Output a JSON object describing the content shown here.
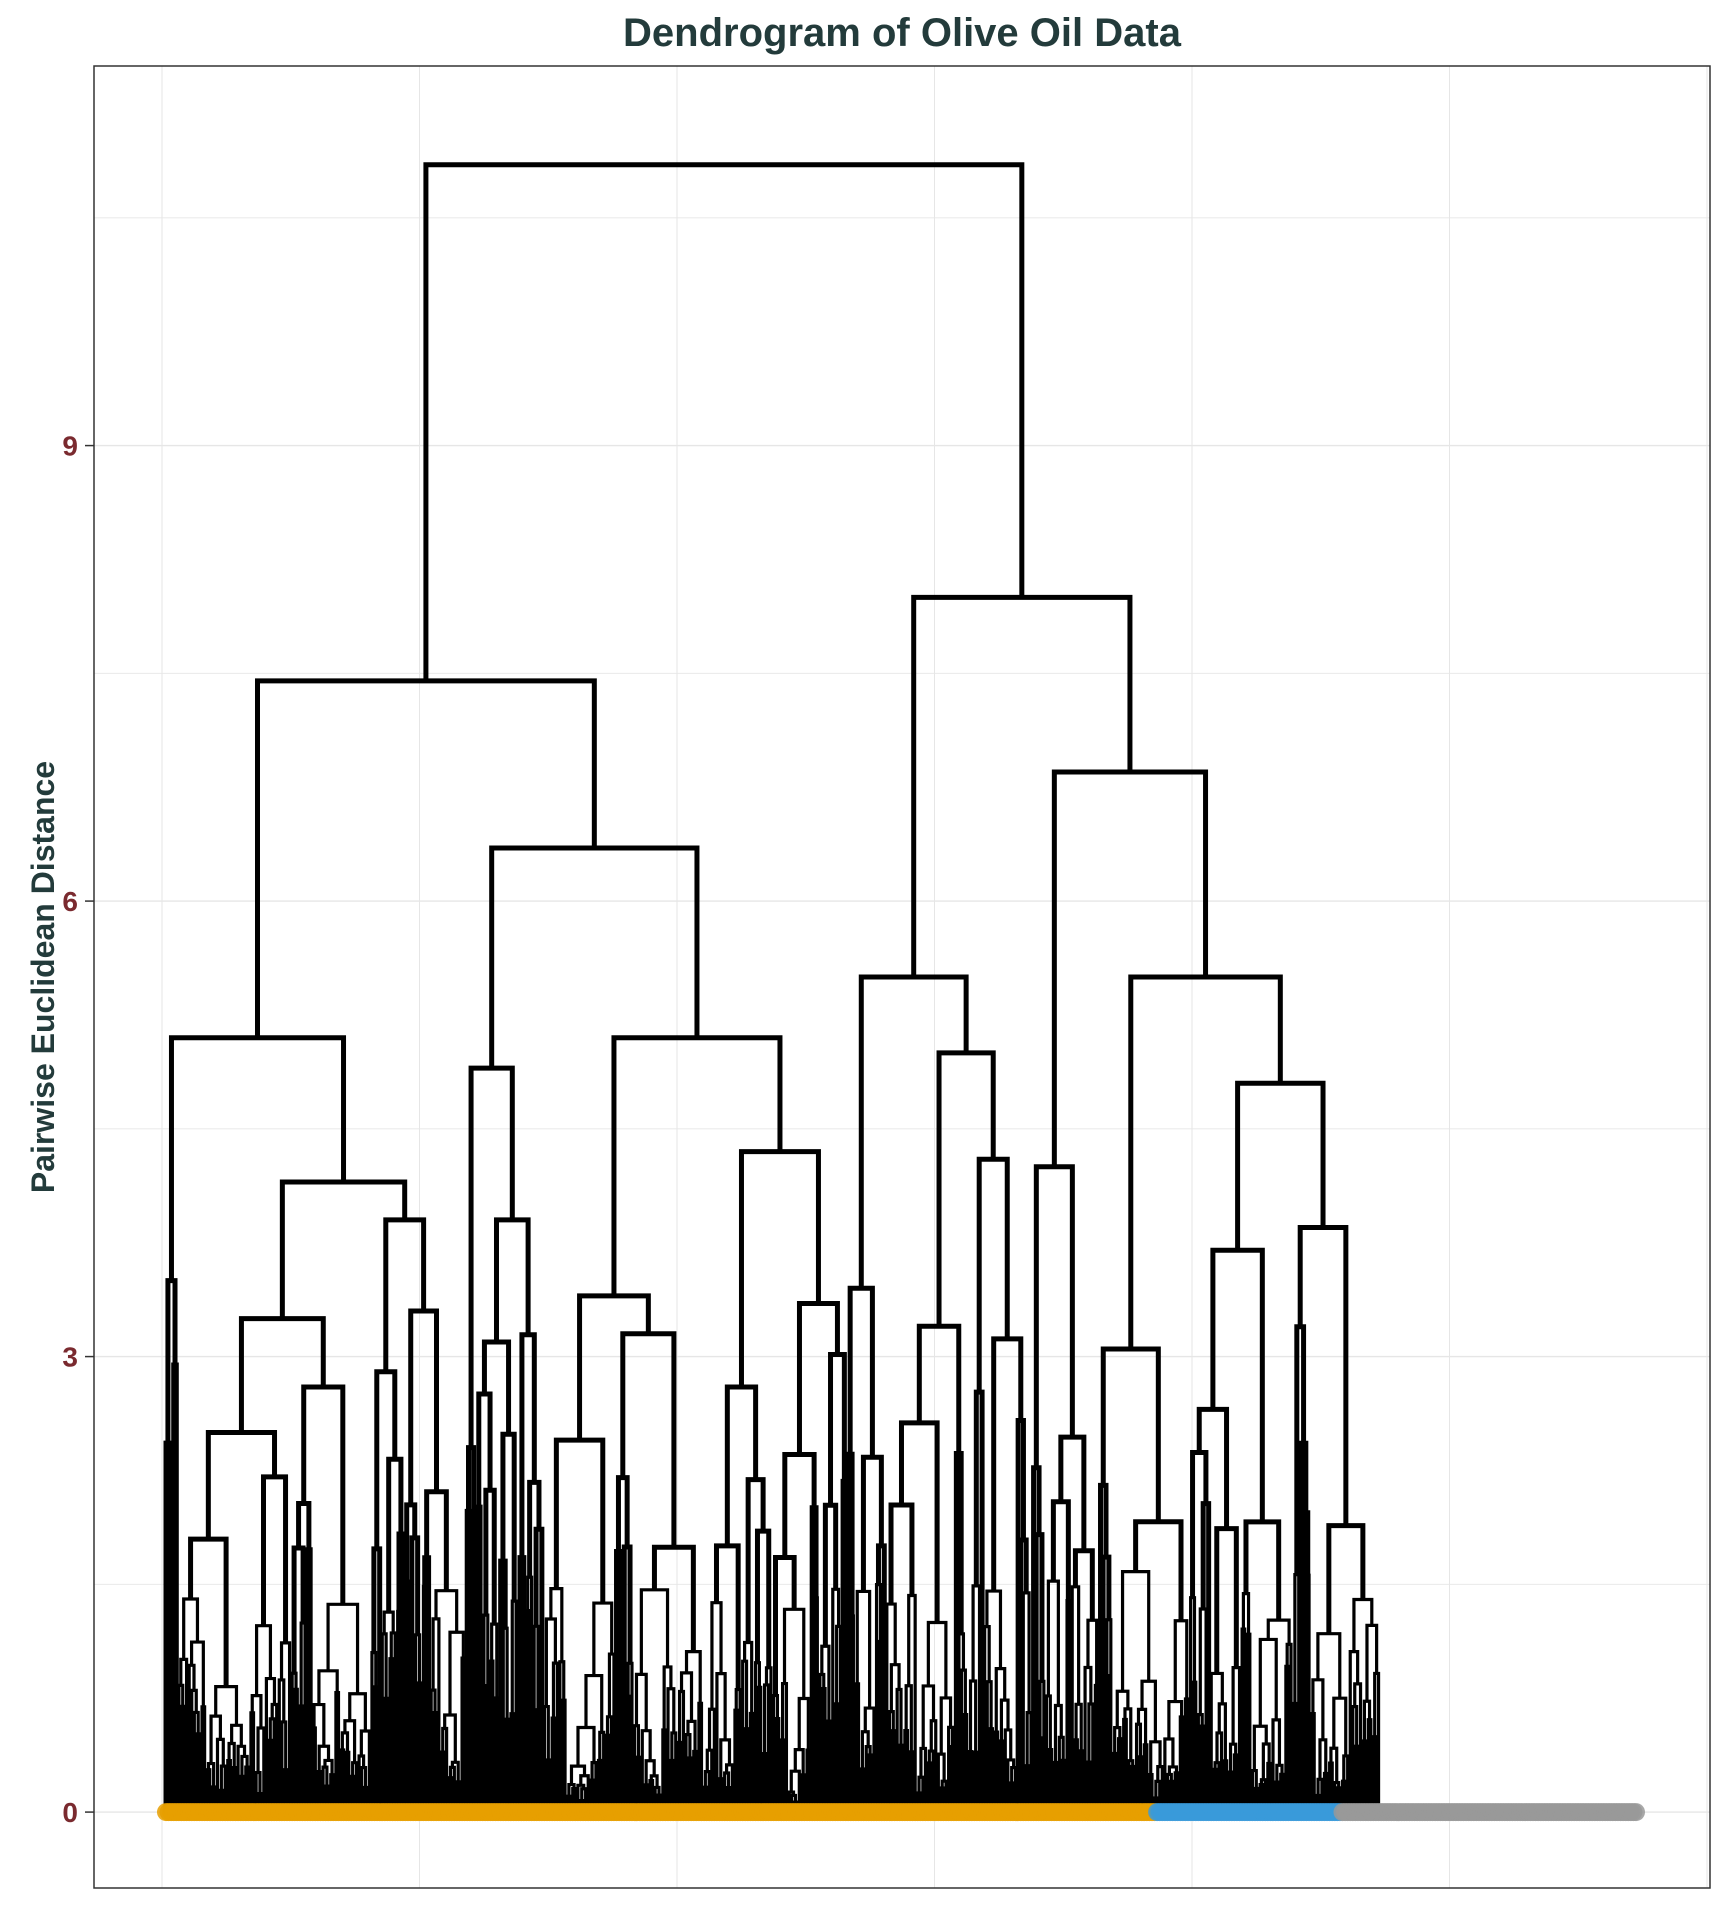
{
  "chart_data": {
    "type": "dendrogram",
    "title": "Dendrogram of Olive Oil Data",
    "xlabel": "",
    "ylabel": "Pairwise Euclidean Distance",
    "ylim": [
      -0.5,
      11.5
    ],
    "yticks": [
      0,
      3,
      6,
      9
    ],
    "grid": true,
    "legend": "none",
    "leaf_count": 572,
    "colors": {
      "line": "#000000",
      "grid": "#e6e6e6",
      "group_a": "#e69f00",
      "group_b": "#3a9ad9",
      "group_c": "#999999"
    },
    "leaf_groups": [
      {
        "color": "group_a",
        "count": 385
      },
      {
        "color": "group_b",
        "count": 72
      },
      {
        "color": "group_c",
        "count": 115
      }
    ],
    "tree": {
      "h": 10.85,
      "children": [
        {
          "h": 7.45,
          "children": [
            {
              "h": 5.1,
              "children": [
                {
                  "h": 3.5,
                  "leaves": 5
                },
                {
                  "h": 4.15,
                  "children": [
                    {
                      "h": 3.25,
                      "children": [
                        {
                          "h": 2.5,
                          "leaves": 44
                        },
                        {
                          "h": 2.8,
                          "leaves": 31
                        }
                      ]
                    },
                    {
                      "h": 3.9,
                      "children": [
                        {
                          "h": 2.9,
                          "leaves": 13
                        },
                        {
                          "h": 3.3,
                          "leaves": 24
                        }
                      ]
                    }
                  ]
                }
              ]
            },
            {
              "h": 6.35,
              "children": [
                {
                  "h": 4.9,
                  "children": [
                    {
                      "h": 2.4,
                      "leaves": 4
                    },
                    {
                      "h": 3.9,
                      "leaves": 26
                    }
                  ]
                },
                {
                  "h": 5.1,
                  "children": [
                    {
                      "h": 3.4,
                      "children": [
                        {
                          "h": 2.45,
                          "leaves": 28
                        },
                        {
                          "h": 3.15,
                          "leaves": 34
                        }
                      ]
                    },
                    {
                      "h": 4.35,
                      "children": [
                        {
                          "h": 2.8,
                          "leaves": 27
                        },
                        {
                          "h": 3.35,
                          "leaves": 29
                        }
                      ]
                    }
                  ]
                }
              ]
            }
          ]
        },
        {
          "h": 8.0,
          "children": [
            {
              "h": 5.5,
              "children": [
                {
                  "h": 3.45,
                  "leaves": 15
                },
                {
                  "h": 5.0,
                  "children": [
                    {
                      "h": 3.2,
                      "leaves": 32
                    },
                    {
                      "h": 4.3,
                      "leaves": 25
                    }
                  ]
                }
              ]
            },
            {
              "h": 6.85,
              "children": [
                {
                  "h": 4.25,
                  "leaves": 26
                },
                {
                  "h": 5.5,
                  "children": [
                    {
                      "h": 3.05,
                      "leaves": 35
                    },
                    {
                      "h": 4.8,
                      "children": [
                        {
                          "h": 3.7,
                          "leaves": 40
                        },
                        {
                          "h": 3.85,
                          "leaves": 34
                        }
                      ]
                    }
                  ]
                }
              ]
            }
          ]
        }
      ]
    }
  }
}
